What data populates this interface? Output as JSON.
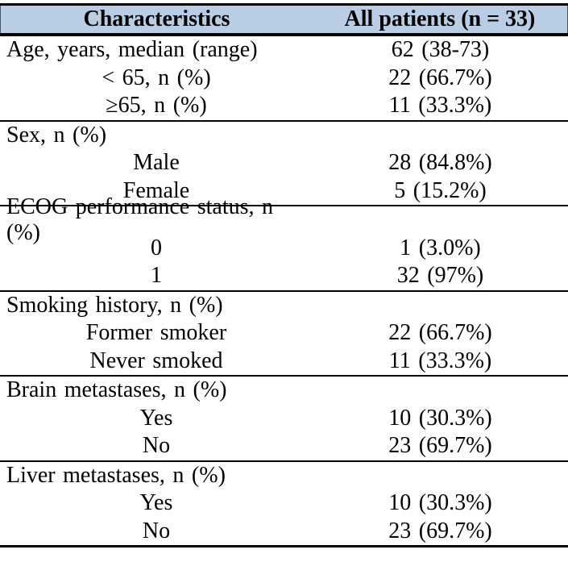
{
  "table": {
    "header": {
      "col1": "Characteristics",
      "col2": "All patients (n = 33)"
    },
    "sections": [
      {
        "rows": [
          {
            "label": "Age, years, median (range)",
            "value": "62 (38-73)",
            "indent": false
          },
          {
            "label": "< 65, n (%)",
            "value": "22 (66.7%)",
            "indent": true
          },
          {
            "label": "≥65, n (%)",
            "value": "11 (33.3%)",
            "indent": true
          }
        ]
      },
      {
        "rows": [
          {
            "label": "Sex, n (%)",
            "value": "",
            "indent": false
          },
          {
            "label": "Male",
            "value": "28 (84.8%)",
            "indent": true
          },
          {
            "label": "Female",
            "value": "5 (15.2%)",
            "indent": true
          }
        ]
      },
      {
        "rows": [
          {
            "label": "ECOG performance status, n (%)",
            "value": "",
            "indent": false
          },
          {
            "label": "0",
            "value": "1 (3.0%)",
            "indent": true
          },
          {
            "label": "1",
            "value": "32 (97%)",
            "indent": true
          }
        ]
      },
      {
        "rows": [
          {
            "label": "Smoking history, n (%)",
            "value": "",
            "indent": false
          },
          {
            "label": "Former smoker",
            "value": "22 (66.7%)",
            "indent": true
          },
          {
            "label": "Never smoked",
            "value": "11 (33.3%)",
            "indent": true
          }
        ]
      },
      {
        "rows": [
          {
            "label": "Brain metastases, n (%)",
            "value": "",
            "indent": false
          },
          {
            "label": "Yes",
            "value": "10 (30.3%)",
            "indent": true
          },
          {
            "label": "No",
            "value": "23 (69.7%)",
            "indent": true
          }
        ]
      },
      {
        "rows": [
          {
            "label": "Liver metastases, n (%)",
            "value": "",
            "indent": false
          },
          {
            "label": "Yes",
            "value": "10 (30.3%)",
            "indent": true
          },
          {
            "label": "No",
            "value": "23 (69.7%)",
            "indent": true
          }
        ]
      }
    ],
    "colors": {
      "header_bg": "#b9cde4",
      "border": "#000000",
      "text": "#000000"
    }
  }
}
